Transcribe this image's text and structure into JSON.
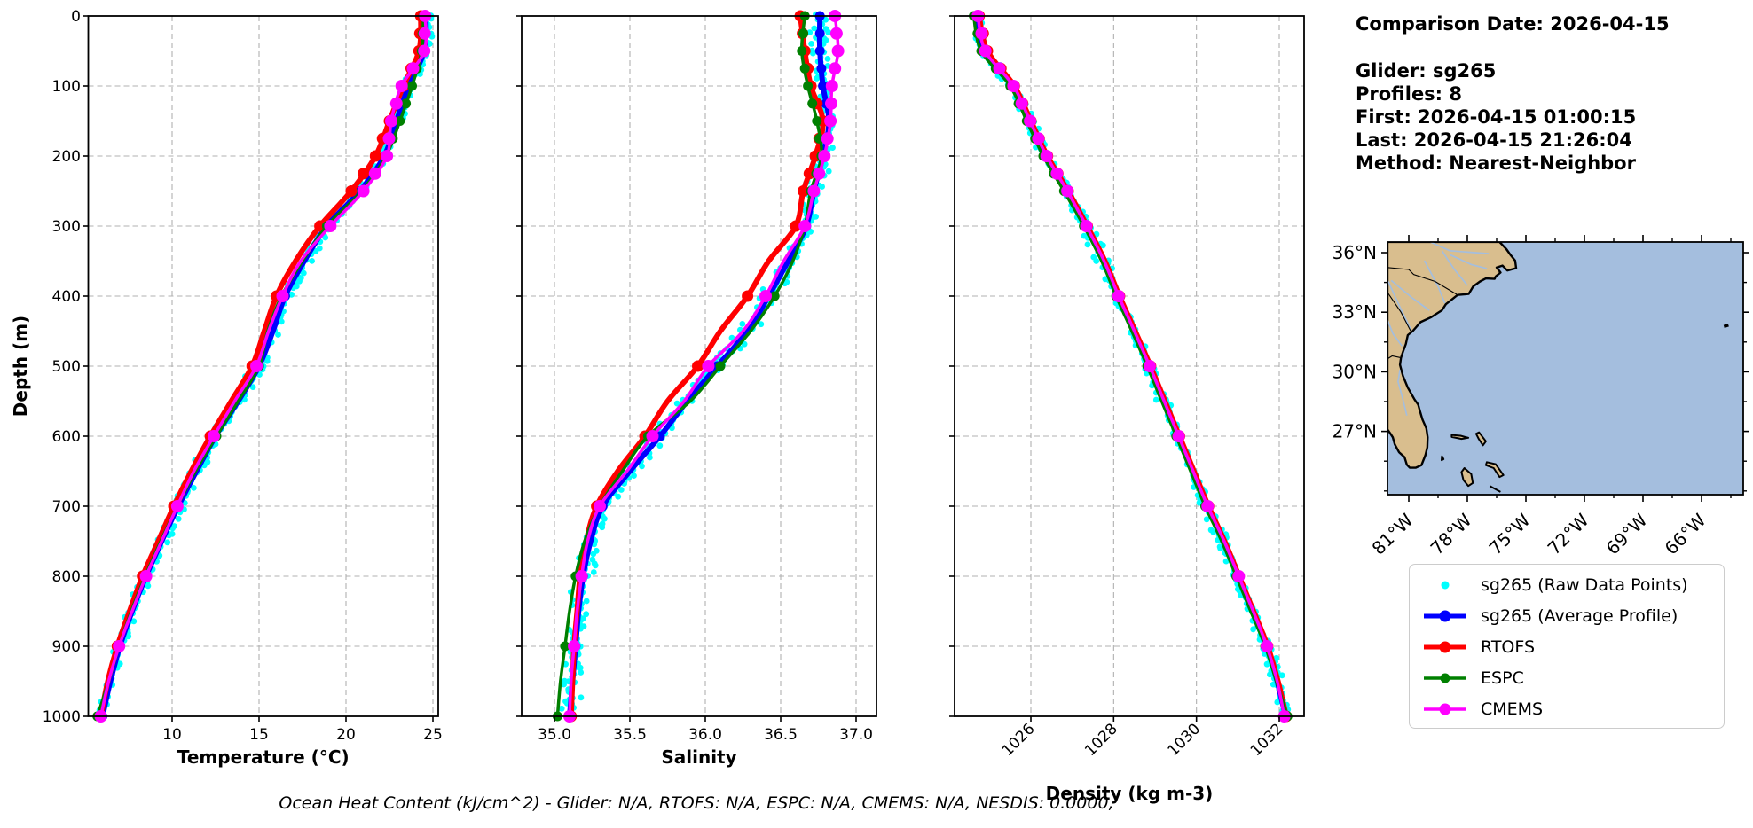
{
  "info": {
    "title": "Comparison Date: 2026-04-15",
    "glider": "Glider: sg265",
    "profiles": "Profiles: 8",
    "first": "First: 2026-04-15 01:00:15",
    "last": "Last: 2026-04-15 21:26:04",
    "method": "Method: Nearest-Neighbor"
  },
  "caption": "Ocean Heat Content (kJ/cm^2) - Glider: N/A,  RTOFS: N/A,  ESPC: N/A,  CMEMS: N/A,  NESDIS: 0.0000,",
  "legend": {
    "items": [
      {
        "label": "sg265 (Raw Data Points)",
        "color": "#00ffff",
        "style": "dot",
        "lw": 0,
        "r": 4.5
      },
      {
        "label": "sg265 (Average Profile)",
        "color": "#0000ff",
        "style": "line-dot",
        "lw": 5,
        "r": 6.5
      },
      {
        "label": "RTOFS",
        "color": "#ff0000",
        "style": "line-dot",
        "lw": 5,
        "r": 6.5
      },
      {
        "label": "ESPC",
        "color": "#008000",
        "style": "line-dot",
        "lw": 3.5,
        "r": 5.5
      },
      {
        "label": "CMEMS",
        "color": "#ff00ff",
        "style": "line-dot",
        "lw": 3.5,
        "r": 6.5
      }
    ]
  },
  "chart_data": [
    {
      "type": "line",
      "name": "temperature-profile",
      "xlabel": "Temperature (°C)",
      "ylabel": "Depth (m)",
      "xlim": [
        5.18,
        25.26
      ],
      "ylim": [
        0,
        1000
      ],
      "xticks": [
        10,
        15,
        20,
        25
      ],
      "xtick_labels": [
        "10",
        "15",
        "20",
        "25"
      ],
      "yticks": [
        0,
        100,
        200,
        300,
        400,
        500,
        600,
        700,
        800,
        900,
        1000
      ],
      "ytick_labels": [
        "0",
        "100",
        "200",
        "300",
        "400",
        "500",
        "600",
        "700",
        "800",
        "900",
        "1000"
      ],
      "depths": [
        0,
        50,
        100,
        150,
        200,
        250,
        300,
        350,
        400,
        450,
        500,
        550,
        600,
        650,
        700,
        750,
        800,
        850,
        900,
        950,
        1000
      ],
      "series": [
        {
          "name": "sg265 (Average Profile)",
          "color": "#0000ff",
          "lw": 6,
          "values": [
            24.6,
            24.5,
            23.6,
            22.9,
            22.2,
            20.8,
            18.9,
            17.6,
            16.5,
            15.8,
            15.0,
            13.8,
            12.5,
            11.4,
            10.35,
            9.4,
            8.5,
            7.7,
            7.0,
            6.45,
            6.0
          ]
        },
        {
          "name": "RTOFS",
          "color": "#ff0000",
          "lw": 6,
          "values": [
            24.3,
            24.2,
            23.3,
            22.5,
            21.7,
            20.3,
            18.5,
            17.1,
            16.0,
            15.3,
            14.6,
            13.4,
            12.2,
            11.1,
            10.1,
            9.2,
            8.3,
            7.55,
            6.85,
            6.3,
            5.9
          ]
        },
        {
          "name": "ESPC",
          "color": "#008000",
          "lw": 3.5,
          "values": [
            24.45,
            24.35,
            23.8,
            23.1,
            22.3,
            20.9,
            18.9,
            17.5,
            16.3,
            15.5,
            15.0,
            13.8,
            12.55,
            11.35,
            10.3,
            9.35,
            8.45,
            7.65,
            6.95,
            6.35,
            5.7
          ]
        },
        {
          "name": "CMEMS",
          "color": "#ff00ff",
          "lw": 3.5,
          "values": [
            24.55,
            24.5,
            23.2,
            22.6,
            22.35,
            21.0,
            19.1,
            17.4,
            16.35,
            15.55,
            14.85,
            13.6,
            12.4,
            11.25,
            10.3,
            9.4,
            8.5,
            7.7,
            6.95,
            6.35,
            5.9
          ]
        }
      ],
      "raw": {
        "name": "sg265 (Raw Data Points)",
        "color": "#00ffff",
        "amp": 0.3
      }
    },
    {
      "type": "line",
      "name": "salinity-profile",
      "xlabel": "Salinity",
      "ylabel": "Depth (m)",
      "xlim": [
        34.78,
        37.14
      ],
      "ylim": [
        0,
        1000
      ],
      "xticks": [
        35.0,
        35.5,
        36.0,
        36.5,
        37.0
      ],
      "xtick_labels": [
        "35.0",
        "35.5",
        "36.0",
        "36.5",
        "37.0"
      ],
      "yticks": [
        0,
        100,
        200,
        300,
        400,
        500,
        600,
        700,
        800,
        900,
        1000
      ],
      "ytick_labels": [
        "0",
        "100",
        "200",
        "300",
        "400",
        "500",
        "600",
        "700",
        "800",
        "900",
        "1000"
      ],
      "depths": [
        0,
        50,
        100,
        150,
        200,
        250,
        300,
        350,
        400,
        450,
        500,
        550,
        600,
        650,
        700,
        750,
        800,
        850,
        900,
        950,
        1000
      ],
      "series": [
        {
          "name": "sg265 (Average Profile)",
          "color": "#0000ff",
          "lw": 6,
          "values": [
            36.76,
            36.76,
            36.78,
            36.82,
            36.78,
            36.72,
            36.67,
            36.55,
            36.42,
            36.28,
            36.08,
            35.88,
            35.7,
            35.5,
            35.32,
            35.24,
            35.19,
            35.16,
            35.14,
            35.12,
            35.1
          ]
        },
        {
          "name": "RTOFS",
          "color": "#ff0000",
          "lw": 6,
          "values": [
            36.63,
            36.66,
            36.7,
            36.78,
            36.73,
            36.65,
            36.6,
            36.42,
            36.28,
            36.1,
            35.95,
            35.75,
            35.6,
            35.42,
            35.28,
            35.21,
            35.17,
            35.15,
            35.13,
            35.12,
            35.11
          ]
        },
        {
          "name": "ESPC",
          "color": "#008000",
          "lw": 3.5,
          "values": [
            36.66,
            36.64,
            36.68,
            36.74,
            36.77,
            36.7,
            36.66,
            36.58,
            36.46,
            36.3,
            36.1,
            35.9,
            35.62,
            35.45,
            35.3,
            35.2,
            35.14,
            35.1,
            35.07,
            35.04,
            35.02
          ]
        },
        {
          "name": "CMEMS",
          "color": "#ff00ff",
          "lw": 3.5,
          "values": [
            36.86,
            36.88,
            36.84,
            36.83,
            36.79,
            36.72,
            36.66,
            36.52,
            36.4,
            36.25,
            36.02,
            35.86,
            35.65,
            35.48,
            35.3,
            35.22,
            35.18,
            35.15,
            35.13,
            35.11,
            35.1
          ]
        }
      ],
      "raw": {
        "name": "sg265 (Raw Data Points)",
        "color": "#00ffff",
        "amp": 0.05
      }
    },
    {
      "type": "line",
      "name": "density-profile",
      "xlabel": "Density (kg m-3)",
      "ylabel": "Depth (m)",
      "xlim": [
        1024.16,
        1032.56
      ],
      "ylim": [
        0,
        1000
      ],
      "xticks": [
        1026,
        1028,
        1030,
        1032
      ],
      "xtick_labels": [
        "1026",
        "1028",
        "1030",
        "1032"
      ],
      "xtick_rotation": 45,
      "yticks": [
        0,
        100,
        200,
        300,
        400,
        500,
        600,
        700,
        800,
        900,
        1000
      ],
      "ytick_labels": [
        "0",
        "100",
        "200",
        "300",
        "400",
        "500",
        "600",
        "700",
        "800",
        "900",
        "1000"
      ],
      "depths": [
        0,
        50,
        100,
        150,
        200,
        250,
        300,
        350,
        400,
        450,
        500,
        550,
        600,
        650,
        700,
        750,
        800,
        850,
        900,
        950,
        1000
      ],
      "series": [
        {
          "name": "sg265 (Average Profile)",
          "color": "#0000ff",
          "lw": 6,
          "values": [
            1024.68,
            1024.85,
            1025.55,
            1025.95,
            1026.35,
            1026.85,
            1027.32,
            1027.75,
            1028.1,
            1028.48,
            1028.85,
            1029.2,
            1029.55,
            1029.9,
            1030.25,
            1030.65,
            1031.0,
            1031.35,
            1031.7,
            1031.95,
            1032.15
          ]
        },
        {
          "name": "RTOFS",
          "color": "#ff0000",
          "lw": 6,
          "values": [
            1024.75,
            1024.95,
            1025.6,
            1026.0,
            1026.4,
            1026.9,
            1027.36,
            1027.79,
            1028.14,
            1028.52,
            1028.89,
            1029.24,
            1029.59,
            1029.94,
            1030.29,
            1030.68,
            1031.03,
            1031.38,
            1031.72,
            1031.97,
            1032.17
          ]
        },
        {
          "name": "ESPC",
          "color": "#008000",
          "lw": 3.5,
          "values": [
            1024.62,
            1024.8,
            1025.5,
            1025.9,
            1026.3,
            1026.8,
            1027.28,
            1027.71,
            1028.06,
            1028.44,
            1028.81,
            1029.16,
            1029.51,
            1029.86,
            1030.21,
            1030.61,
            1030.96,
            1031.31,
            1031.66,
            1031.93,
            1032.2
          ]
        },
        {
          "name": "CMEMS",
          "color": "#ff00ff",
          "lw": 3.5,
          "values": [
            1024.72,
            1024.9,
            1025.58,
            1025.98,
            1026.38,
            1026.88,
            1027.34,
            1027.77,
            1028.12,
            1028.5,
            1028.87,
            1029.22,
            1029.57,
            1029.92,
            1030.27,
            1030.67,
            1031.02,
            1031.37,
            1031.7,
            1031.95,
            1032.12
          ]
        }
      ],
      "raw": {
        "name": "sg265 (Raw Data Points)",
        "color": "#00ffff",
        "amp": 0.12
      }
    }
  ],
  "map": {
    "extent": {
      "lon_min": -82.09,
      "lon_max": -63.86,
      "lat_min": 23.81,
      "lat_max": 36.54
    },
    "lat_ticks": [
      {
        "value": 36,
        "label": "36°N"
      },
      {
        "value": 33,
        "label": "33°N"
      },
      {
        "value": 30,
        "label": "30°N"
      },
      {
        "value": 27,
        "label": "27°N"
      }
    ],
    "lat_minor_ticks": [
      34.5,
      31.5,
      28.5,
      25.5,
      24.0
    ],
    "lon_ticks": [
      {
        "value": -81,
        "label": "81°W"
      },
      {
        "value": -78,
        "label": "78°W"
      },
      {
        "value": -75,
        "label": "75°W"
      },
      {
        "value": -72,
        "label": "72°W"
      },
      {
        "value": -69,
        "label": "69°W"
      },
      {
        "value": -66,
        "label": "66°W"
      }
    ],
    "lon_minor_ticks": [
      -79.5,
      -76.5,
      -73.5,
      -70.5,
      -67.5,
      -64.5
    ],
    "colors": {
      "land": "#d9be8e",
      "ocean": "#a4bede",
      "coast": "#000000",
      "river": "#a4bede",
      "border": "#000000"
    }
  }
}
